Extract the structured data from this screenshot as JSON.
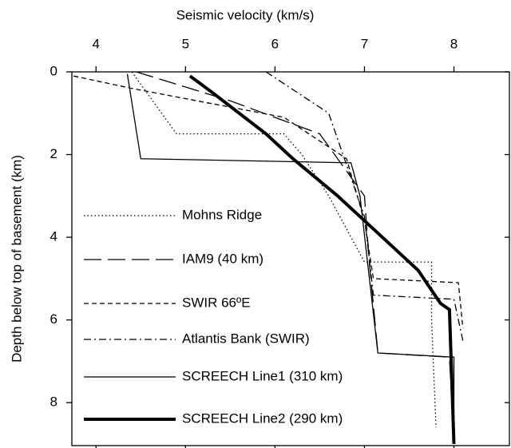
{
  "chart_data": {
    "type": "line",
    "xlabel": "Seismic velocity (km/s)",
    "ylabel": "Depth below top of basement (km)",
    "xlim": [
      3.73,
      8.62
    ],
    "xticks": [
      4,
      5,
      6,
      7,
      8
    ],
    "ylim": [
      0,
      9.04
    ],
    "yticks": [
      0,
      2,
      4,
      6,
      8
    ],
    "y_inverted": true,
    "legend": "left",
    "series": [
      {
        "name": "Mohns Ridge",
        "color": "#000000",
        "style": "dotted",
        "width": 1.3,
        "x": [
          4.4,
          4.9,
          6.1,
          6.3,
          6.6,
          6.9,
          7.0,
          7.75,
          7.75,
          7.8
        ],
        "values": [
          0,
          1.5,
          1.5,
          2.0,
          3.0,
          4.2,
          4.6,
          4.6,
          6.0,
          8.6
        ]
      },
      {
        "name": "IAM9 (40 km)",
        "color": "#000000",
        "style": "longdash",
        "width": 1.3,
        "x": [
          4.45,
          5.5,
          6.5,
          7.0,
          7.05,
          7.15,
          7.95,
          8.0
        ],
        "values": [
          0,
          0.7,
          1.5,
          3.0,
          4.5,
          6.8,
          6.9,
          9.0
        ]
      },
      {
        "name": "SWIR 66ºE",
        "color": "#000000",
        "style": "shortdash",
        "width": 1.3,
        "x": [
          3.75,
          4.4,
          6.1,
          6.8,
          7.0,
          7.1,
          8.05,
          8.1
        ],
        "values": [
          0.1,
          0.4,
          1.1,
          2.1,
          3.6,
          5.0,
          5.1,
          6.2
        ]
      },
      {
        "name": "Atlantis Bank (SWIR)",
        "color": "#000000",
        "style": "dashdot",
        "width": 1.3,
        "x": [
          5.9,
          6.6,
          7.0,
          7.1,
          8.0,
          8.1
        ],
        "values": [
          0,
          1.0,
          3.5,
          5.4,
          5.5,
          6.5
        ]
      },
      {
        "name": "SCREECH Line1 (310 km)",
        "color": "#000000",
        "style": "solid",
        "width": 1.3,
        "x": [
          4.35,
          4.5,
          6.85,
          6.95,
          7.15,
          8.0,
          8.0
        ],
        "values": [
          0.05,
          2.1,
          2.2,
          3.0,
          6.8,
          6.9,
          9.0
        ]
      },
      {
        "name": "SCREECH Line2 (290 km)",
        "color": "#000000",
        "style": "solid",
        "width": 4,
        "x": [
          5.05,
          5.3,
          5.9,
          6.2,
          6.7,
          7.2,
          7.6,
          7.85,
          7.95,
          8.0
        ],
        "values": [
          0.1,
          0.5,
          1.5,
          2.1,
          3.0,
          4.0,
          4.8,
          5.6,
          5.75,
          9.0
        ]
      }
    ]
  }
}
